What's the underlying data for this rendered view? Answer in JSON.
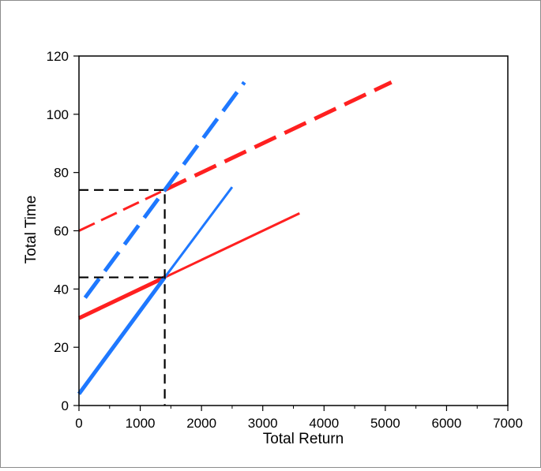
{
  "chart_data": {
    "type": "line",
    "xlabel": "Total Return",
    "ylabel": "Total Time",
    "xlim": [
      0,
      7000
    ],
    "ylim": [
      0,
      120
    ],
    "x_ticks": [
      0,
      1000,
      2000,
      3000,
      4000,
      5000,
      6000,
      7000
    ],
    "y_ticks": [
      0,
      20,
      40,
      60,
      80,
      100,
      120
    ],
    "grid": false,
    "series": [
      {
        "color": "#ff2020",
        "segments": [
          {
            "x": [
              0,
              1400
            ],
            "y": [
              30,
              44
            ],
            "style": "solid",
            "weight": "thick"
          },
          {
            "x": [
              1400,
              3600
            ],
            "y": [
              44,
              66
            ],
            "style": "solid",
            "weight": "thin"
          }
        ]
      },
      {
        "color": "#1e78ff",
        "segments": [
          {
            "x": [
              0,
              1400
            ],
            "y": [
              4,
              44
            ],
            "style": "solid",
            "weight": "thick"
          },
          {
            "x": [
              1400,
              2500
            ],
            "y": [
              44,
              75
            ],
            "style": "solid",
            "weight": "thin"
          }
        ]
      },
      {
        "color": "#ff2020",
        "segments": [
          {
            "x": [
              0,
              1400
            ],
            "y": [
              60,
              74
            ],
            "style": "dashed",
            "weight": "thin"
          },
          {
            "x": [
              1400,
              5100
            ],
            "y": [
              74,
              111
            ],
            "style": "dashed",
            "weight": "thick"
          }
        ]
      },
      {
        "color": "#1e78ff",
        "segments": [
          {
            "x": [
              100,
              2700
            ],
            "y": [
              37,
              111
            ],
            "style": "dashed",
            "weight": "thick"
          }
        ]
      }
    ],
    "reference_lines": [
      {
        "x": [
          0,
          1400,
          1400
        ],
        "y": [
          74,
          74,
          0
        ],
        "color": "#000000",
        "style": "dashed"
      },
      {
        "x": [
          0,
          1400
        ],
        "y": [
          44,
          44
        ],
        "color": "#000000",
        "style": "dashed"
      }
    ]
  }
}
